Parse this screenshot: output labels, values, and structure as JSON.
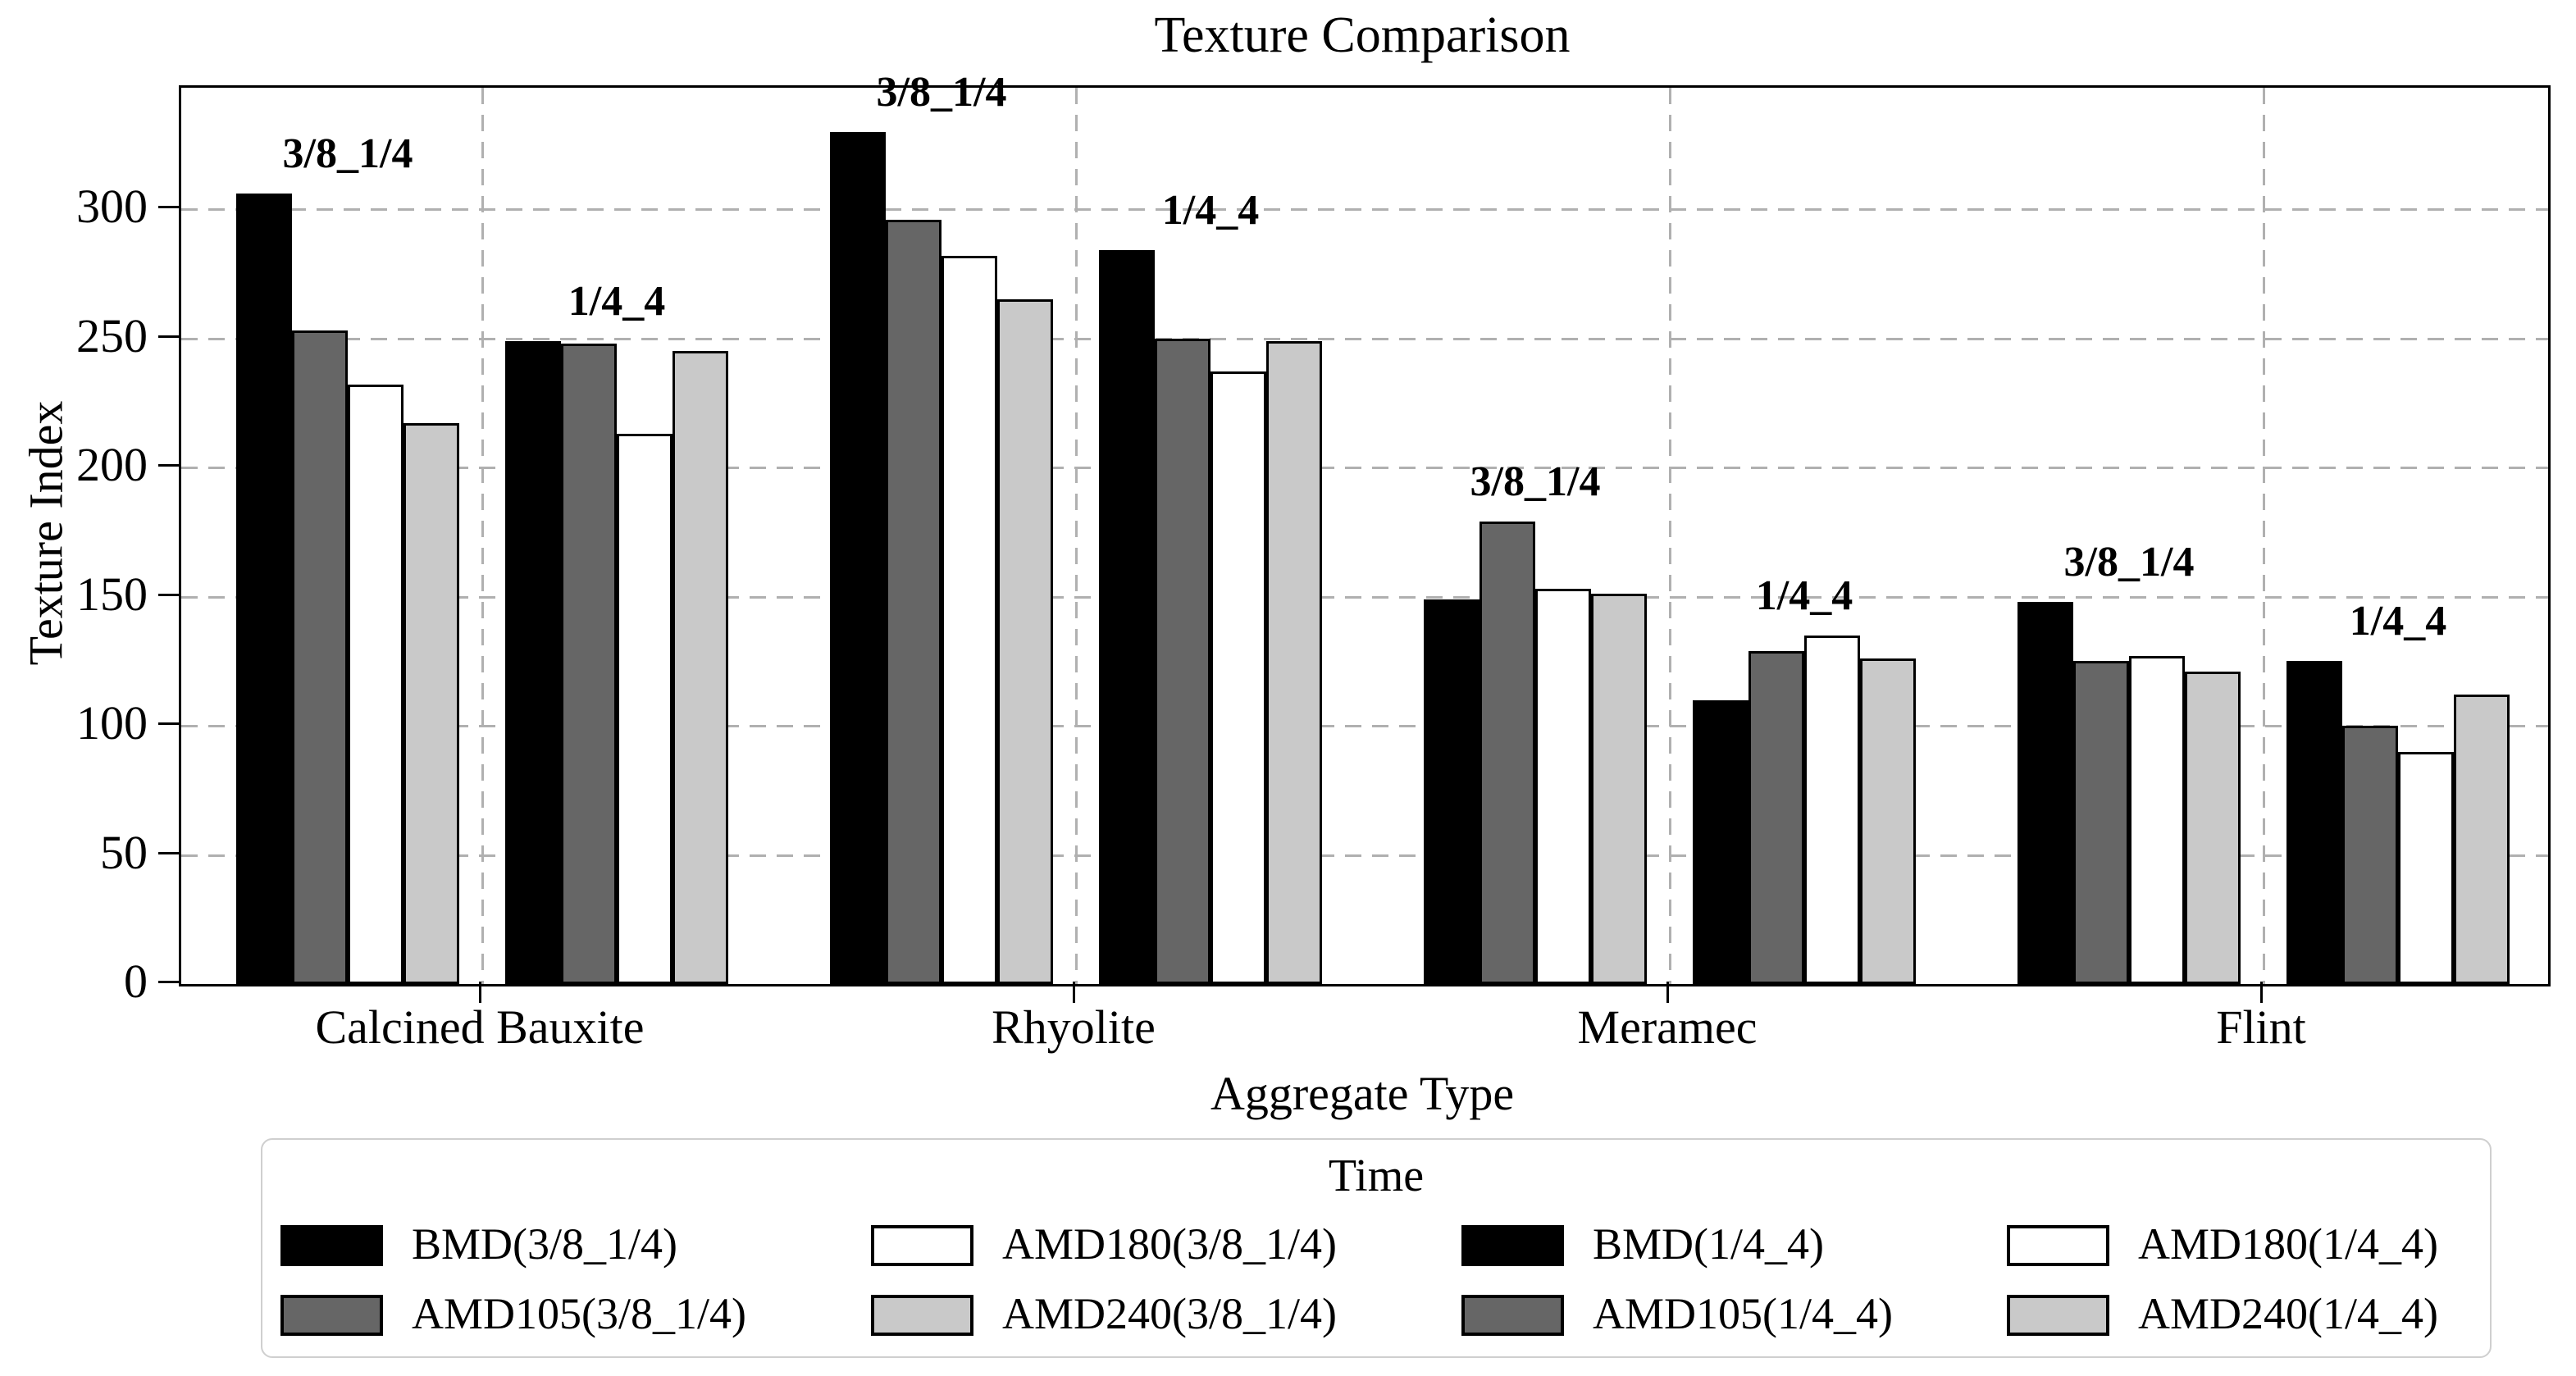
{
  "chart_data": {
    "type": "bar",
    "title": "Texture Comparison",
    "xlabel": "Aggregate Type",
    "ylabel": "Texture Index",
    "legend_title": "Time",
    "legend_position": "below",
    "grid": true,
    "ylim": [
      0,
      347
    ],
    "yticks": [
      0,
      50,
      100,
      150,
      200,
      250,
      300
    ],
    "categories": [
      "Calcined Bauxite",
      "Rhyolite",
      "Meramec",
      "Flint"
    ],
    "series": [
      {
        "name": "BMD(3/8_1/4)",
        "color": "#000000",
        "values": [
          306,
          330,
          149,
          148
        ]
      },
      {
        "name": "AMD105(3/8_1/4)",
        "color": "#666666",
        "values": [
          253,
          296,
          179,
          125
        ]
      },
      {
        "name": "AMD180(3/8_1/4)",
        "color": "#ffffff",
        "values": [
          232,
          282,
          153,
          127
        ]
      },
      {
        "name": "AMD240(3/8_1/4)",
        "color": "#c9c9c9",
        "values": [
          217,
          265,
          151,
          121
        ]
      },
      {
        "name": "BMD(1/4_4)",
        "color": "#000000",
        "values": [
          249,
          284,
          110,
          125
        ]
      },
      {
        "name": "AMD105(1/4_4)",
        "color": "#666666",
        "values": [
          248,
          250,
          129,
          100
        ]
      },
      {
        "name": "AMD180(1/4_4)",
        "color": "#ffffff",
        "values": [
          213,
          237,
          135,
          90
        ]
      },
      {
        "name": "AMD240(1/4_4)",
        "color": "#c9c9c9",
        "values": [
          245,
          249,
          126,
          112
        ]
      }
    ],
    "group_annotations": [
      {
        "label": "3/8_1/4",
        "series_indexes": [
          0,
          1,
          2,
          3
        ]
      },
      {
        "label": "1/4_4",
        "series_indexes": [
          4,
          5,
          6,
          7
        ]
      }
    ],
    "legend_columns": [
      [
        0,
        1
      ],
      [
        2,
        3
      ],
      [
        4,
        5
      ],
      [
        6,
        7
      ]
    ],
    "colors": {
      "bar_edge": "#000000",
      "grid": "#b0b0b0",
      "legend_border": "#cfcfcf",
      "text": "#000000"
    }
  }
}
